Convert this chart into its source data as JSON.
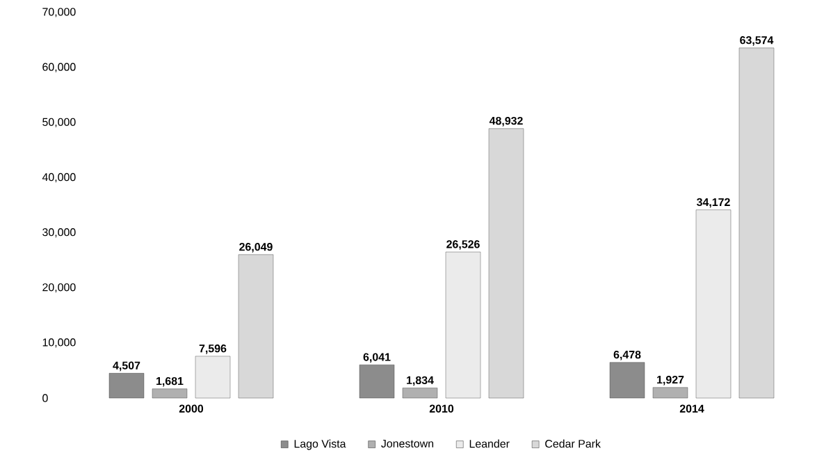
{
  "chart_data": {
    "type": "bar",
    "categories": [
      "2000",
      "2010",
      "2014"
    ],
    "series": [
      {
        "name": "Lago Vista",
        "color": "#8c8c8c",
        "values": [
          4507,
          6041,
          6478
        ],
        "value_labels": [
          "4,507",
          "6,041",
          "6,478"
        ]
      },
      {
        "name": "Jonestown",
        "color": "#b0b0b0",
        "values": [
          1681,
          1834,
          1927
        ],
        "value_labels": [
          "1,681",
          "1,834",
          "1,927"
        ]
      },
      {
        "name": "Leander",
        "color": "#ebebeb",
        "values": [
          7596,
          26526,
          34172
        ],
        "value_labels": [
          "7,596",
          "26,526",
          "34,172"
        ]
      },
      {
        "name": "Cedar Park",
        "color": "#d8d8d8",
        "values": [
          26049,
          48932,
          63574
        ],
        "value_labels": [
          "26,049",
          "48,932",
          "63,574"
        ]
      }
    ],
    "ylim": [
      0,
      70000
    ],
    "yticks": [
      {
        "value": 0,
        "label": "0"
      },
      {
        "value": 10000,
        "label": "10,000"
      },
      {
        "value": 20000,
        "label": "20,000"
      },
      {
        "value": 30000,
        "label": "30,000"
      },
      {
        "value": 40000,
        "label": "40,000"
      },
      {
        "value": 50000,
        "label": "50,000"
      },
      {
        "value": 60000,
        "label": "60,000"
      },
      {
        "value": 70000,
        "label": "70,000"
      }
    ],
    "legend": "bottom"
  }
}
